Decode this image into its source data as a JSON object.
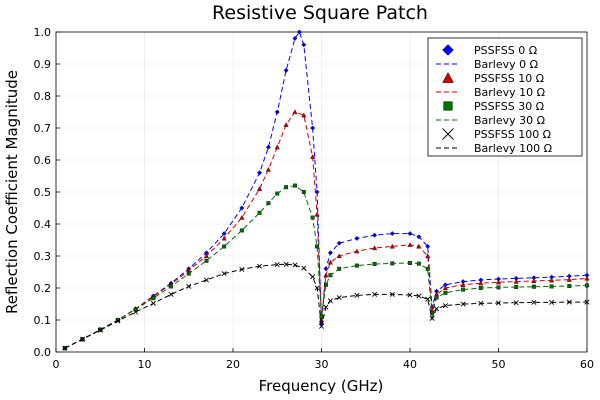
{
  "chart_data": {
    "type": "line",
    "title": "Resistive Square Patch",
    "xlabel": "Frequency (GHz)",
    "ylabel": "Reflection Coefficient Magnitude",
    "xlim": [
      0,
      60
    ],
    "ylim": [
      0,
      1.0
    ],
    "xticks": [
      0,
      10,
      20,
      30,
      40,
      50,
      60
    ],
    "yticks": [
      0.0,
      0.1,
      0.2,
      0.3,
      0.4,
      0.5,
      0.6,
      0.7,
      0.8,
      0.9,
      1.0
    ],
    "grid": true,
    "legend_position": "top-right",
    "legend": [
      "PSSFSS 0 Ω",
      "Barlevy 0 Ω",
      "PSSFSS 10 Ω",
      "Barlevy 10 Ω",
      "PSSFSS 30 Ω",
      "Barlevy 30 Ω",
      "PSSFSS 100 Ω",
      "Barlevy 100 Ω"
    ],
    "series": [
      {
        "name": "PSSFSS 0 Ω",
        "style": "marker",
        "marker": "diamond",
        "color": "#0000ff",
        "x": [
          1,
          3,
          5,
          7,
          9,
          11,
          13,
          15,
          17,
          19,
          21,
          23,
          24,
          25,
          26,
          27,
          27.5,
          28,
          29,
          29.5,
          30,
          30.5,
          31,
          32,
          34,
          36,
          38,
          40,
          41,
          42,
          42.5,
          43,
          44,
          46,
          48,
          50,
          52,
          54,
          56,
          58,
          60
        ],
        "y": [
          0.012,
          0.04,
          0.07,
          0.1,
          0.135,
          0.175,
          0.215,
          0.26,
          0.31,
          0.37,
          0.45,
          0.56,
          0.64,
          0.75,
          0.88,
          0.98,
          1.0,
          0.96,
          0.7,
          0.5,
          0.09,
          0.26,
          0.31,
          0.34,
          0.355,
          0.365,
          0.37,
          0.37,
          0.36,
          0.33,
          0.14,
          0.19,
          0.21,
          0.22,
          0.225,
          0.228,
          0.23,
          0.232,
          0.234,
          0.237,
          0.24
        ]
      },
      {
        "name": "Barlevy 0 Ω",
        "style": "line",
        "dash": "dash",
        "color": "#0000ff",
        "x": [
          1,
          3,
          5,
          7,
          9,
          11,
          13,
          15,
          17,
          19,
          21,
          23,
          24,
          25,
          26,
          27,
          27.5,
          28,
          29,
          29.5,
          30,
          30.5,
          31,
          32,
          34,
          36,
          38,
          40,
          41,
          42,
          42.5,
          43,
          44,
          46,
          48,
          50,
          52,
          54,
          56,
          58,
          60
        ],
        "y": [
          0.012,
          0.04,
          0.07,
          0.1,
          0.135,
          0.175,
          0.215,
          0.26,
          0.31,
          0.37,
          0.45,
          0.56,
          0.64,
          0.75,
          0.88,
          0.98,
          1.0,
          0.96,
          0.7,
          0.5,
          0.09,
          0.26,
          0.31,
          0.34,
          0.355,
          0.365,
          0.37,
          0.37,
          0.36,
          0.33,
          0.14,
          0.19,
          0.21,
          0.22,
          0.225,
          0.228,
          0.23,
          0.232,
          0.234,
          0.237,
          0.24
        ]
      },
      {
        "name": "PSSFSS 10 Ω",
        "style": "marker",
        "marker": "triangle",
        "color": "#cc0000",
        "x": [
          1,
          3,
          5,
          7,
          9,
          11,
          13,
          15,
          17,
          19,
          21,
          23,
          24,
          25,
          26,
          27,
          28,
          29,
          29.5,
          30,
          30.5,
          31,
          32,
          34,
          36,
          38,
          40,
          41,
          42,
          42.5,
          43,
          44,
          46,
          48,
          50,
          52,
          54,
          56,
          58,
          60
        ],
        "y": [
          0.012,
          0.04,
          0.07,
          0.1,
          0.135,
          0.173,
          0.212,
          0.255,
          0.3,
          0.355,
          0.42,
          0.51,
          0.57,
          0.64,
          0.71,
          0.75,
          0.74,
          0.61,
          0.43,
          0.1,
          0.24,
          0.28,
          0.3,
          0.315,
          0.325,
          0.33,
          0.335,
          0.33,
          0.3,
          0.13,
          0.18,
          0.2,
          0.21,
          0.215,
          0.218,
          0.22,
          0.222,
          0.224,
          0.226,
          0.23
        ]
      },
      {
        "name": "Barlevy 10 Ω",
        "style": "line",
        "dash": "dash",
        "color": "#cc0000",
        "x": [
          1,
          3,
          5,
          7,
          9,
          11,
          13,
          15,
          17,
          19,
          21,
          23,
          24,
          25,
          26,
          27,
          28,
          29,
          29.5,
          30,
          30.5,
          31,
          32,
          34,
          36,
          38,
          40,
          41,
          42,
          42.5,
          43,
          44,
          46,
          48,
          50,
          52,
          54,
          56,
          58,
          60
        ],
        "y": [
          0.012,
          0.04,
          0.07,
          0.1,
          0.135,
          0.173,
          0.212,
          0.255,
          0.3,
          0.355,
          0.42,
          0.51,
          0.57,
          0.64,
          0.71,
          0.75,
          0.74,
          0.61,
          0.43,
          0.1,
          0.24,
          0.28,
          0.3,
          0.315,
          0.325,
          0.33,
          0.335,
          0.33,
          0.3,
          0.13,
          0.18,
          0.2,
          0.21,
          0.215,
          0.218,
          0.22,
          0.222,
          0.224,
          0.226,
          0.23
        ]
      },
      {
        "name": "PSSFSS 30 Ω",
        "style": "marker",
        "marker": "square",
        "color": "#007000",
        "x": [
          1,
          3,
          5,
          7,
          9,
          11,
          13,
          15,
          17,
          19,
          21,
          23,
          24,
          25,
          26,
          27,
          28,
          29,
          29.5,
          30,
          30.5,
          31,
          32,
          34,
          36,
          38,
          40,
          41,
          42,
          42.5,
          43,
          44,
          46,
          48,
          50,
          52,
          54,
          56,
          58,
          60
        ],
        "y": [
          0.012,
          0.04,
          0.07,
          0.1,
          0.133,
          0.168,
          0.205,
          0.245,
          0.285,
          0.33,
          0.38,
          0.435,
          0.465,
          0.495,
          0.515,
          0.52,
          0.5,
          0.42,
          0.33,
          0.11,
          0.21,
          0.24,
          0.26,
          0.27,
          0.275,
          0.277,
          0.278,
          0.276,
          0.26,
          0.12,
          0.17,
          0.185,
          0.195,
          0.2,
          0.202,
          0.203,
          0.204,
          0.205,
          0.206,
          0.208
        ]
      },
      {
        "name": "Barlevy 30 Ω",
        "style": "line",
        "dash": "dash",
        "color": "#007000",
        "x": [
          1,
          3,
          5,
          7,
          9,
          11,
          13,
          15,
          17,
          19,
          21,
          23,
          24,
          25,
          26,
          27,
          28,
          29,
          29.5,
          30,
          30.5,
          31,
          32,
          34,
          36,
          38,
          40,
          41,
          42,
          42.5,
          43,
          44,
          46,
          48,
          50,
          52,
          54,
          56,
          58,
          60
        ],
        "y": [
          0.012,
          0.04,
          0.07,
          0.1,
          0.133,
          0.168,
          0.205,
          0.245,
          0.285,
          0.33,
          0.38,
          0.435,
          0.465,
          0.495,
          0.515,
          0.52,
          0.5,
          0.42,
          0.33,
          0.11,
          0.21,
          0.24,
          0.26,
          0.27,
          0.275,
          0.277,
          0.278,
          0.276,
          0.26,
          0.12,
          0.17,
          0.185,
          0.195,
          0.2,
          0.202,
          0.203,
          0.204,
          0.205,
          0.206,
          0.208
        ]
      },
      {
        "name": "PSSFSS 100 Ω",
        "style": "marker",
        "marker": "cross",
        "color": "#000000",
        "x": [
          1,
          3,
          5,
          7,
          9,
          11,
          13,
          15,
          17,
          19,
          21,
          23,
          25,
          26,
          27,
          28,
          29,
          29.5,
          30,
          30.5,
          31,
          32,
          34,
          36,
          38,
          40,
          41,
          42,
          42.5,
          43,
          44,
          46,
          48,
          50,
          52,
          54,
          56,
          58,
          60
        ],
        "y": [
          0.012,
          0.04,
          0.068,
          0.097,
          0.125,
          0.152,
          0.18,
          0.205,
          0.225,
          0.245,
          0.258,
          0.268,
          0.273,
          0.274,
          0.272,
          0.262,
          0.235,
          0.2,
          0.08,
          0.14,
          0.16,
          0.17,
          0.177,
          0.18,
          0.18,
          0.178,
          0.175,
          0.165,
          0.105,
          0.135,
          0.145,
          0.15,
          0.152,
          0.153,
          0.154,
          0.155,
          0.155,
          0.156,
          0.156
        ]
      },
      {
        "name": "Barlevy 100 Ω",
        "style": "line",
        "dash": "dash",
        "color": "#000000",
        "x": [
          1,
          3,
          5,
          7,
          9,
          11,
          13,
          15,
          17,
          19,
          21,
          23,
          25,
          26,
          27,
          28,
          29,
          29.5,
          30,
          30.5,
          31,
          32,
          34,
          36,
          38,
          40,
          41,
          42,
          42.5,
          43,
          44,
          46,
          48,
          50,
          52,
          54,
          56,
          58,
          60
        ],
        "y": [
          0.012,
          0.04,
          0.068,
          0.097,
          0.125,
          0.152,
          0.18,
          0.205,
          0.225,
          0.245,
          0.258,
          0.268,
          0.273,
          0.274,
          0.272,
          0.262,
          0.235,
          0.2,
          0.08,
          0.14,
          0.16,
          0.17,
          0.177,
          0.18,
          0.18,
          0.178,
          0.175,
          0.165,
          0.105,
          0.135,
          0.145,
          0.15,
          0.152,
          0.153,
          0.154,
          0.155,
          0.155,
          0.156,
          0.156
        ]
      }
    ]
  }
}
